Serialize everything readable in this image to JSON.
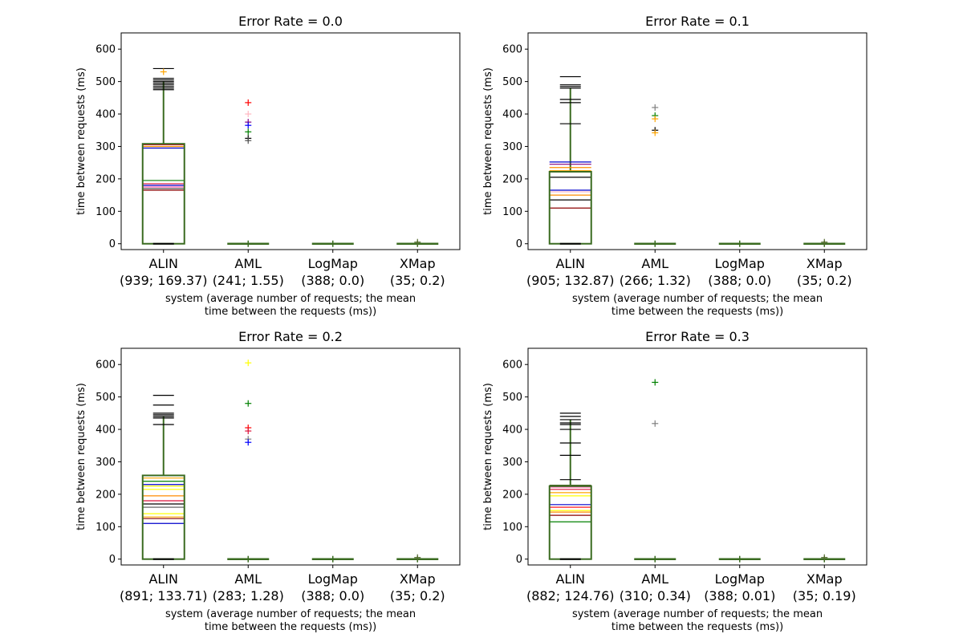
{
  "figure": {
    "xlabel": "system (average number of requests; the mean\ntime between the requests (ms))",
    "ylabel": "time between requests (ms)",
    "yticks": [
      0,
      100,
      200,
      300,
      400,
      500,
      600
    ],
    "ylim": [
      -18,
      650
    ]
  },
  "chart_data": [
    {
      "type": "box",
      "title": "Error Rate = 0.0",
      "categories": [
        "ALIN\n(939; 169.37)",
        "AML\n(241; 1.55)",
        "LogMap\n(388; 0.0)",
        "XMap\n(35; 0.2)"
      ],
      "alin": {
        "q1": 0,
        "q3": 308,
        "whisker_top": 500,
        "whisker_bottom": 0,
        "medians": [
          {
            "value": 165,
            "color": "#8b0000"
          },
          {
            "value": 170,
            "color": "#555555"
          },
          {
            "value": 175,
            "color": "#ff69b4"
          },
          {
            "value": 180,
            "color": "#0000cc"
          },
          {
            "value": 185,
            "color": "#dc143c"
          },
          {
            "value": 195,
            "color": "#228b22"
          }
        ],
        "box_tops": [
          {
            "value": 295,
            "color": "#0000cc"
          },
          {
            "value": 300,
            "color": "#ff8c00"
          },
          {
            "value": 305,
            "color": "#dc143c"
          }
        ],
        "caps": [
          475,
          480,
          485,
          490,
          495,
          500,
          505,
          510,
          540
        ],
        "outliers": [
          {
            "value": 530,
            "color": "#ffa500"
          }
        ]
      },
      "others": [
        {
          "index": 1,
          "outliers": [
            {
              "value": 435,
              "color": "#ff0000"
            },
            {
              "value": 400,
              "color": "#ffb6c1"
            },
            {
              "value": 375,
              "color": "#800080"
            },
            {
              "value": 365,
              "color": "#0000ff"
            },
            {
              "value": 345,
              "color": "#008000"
            },
            {
              "value": 325,
              "color": "#000000"
            },
            {
              "value": 318,
              "color": "#555555"
            }
          ]
        },
        {
          "index": 2,
          "outliers": []
        },
        {
          "index": 3,
          "outliers": [
            {
              "value": 5,
              "color": "#556b2f"
            }
          ]
        }
      ]
    },
    {
      "type": "box",
      "title": "Error Rate = 0.1",
      "categories": [
        "ALIN\n(905; 132.87)",
        "AML\n(266; 1.32)",
        "LogMap\n(388; 0.0)",
        "XMap\n(35; 0.2)"
      ],
      "alin": {
        "q1": 0,
        "q3": 222,
        "whisker_top": 480,
        "whisker_bottom": 0,
        "medians": [
          {
            "value": 110,
            "color": "#8b0000"
          },
          {
            "value": 135,
            "color": "#000000"
          },
          {
            "value": 150,
            "color": "#ff8c00"
          },
          {
            "value": 160,
            "color": "#ffb6c1"
          },
          {
            "value": 165,
            "color": "#0000cc"
          }
        ],
        "box_tops": [
          {
            "value": 205,
            "color": "#000000"
          },
          {
            "value": 225,
            "color": "#ffa500"
          },
          {
            "value": 235,
            "color": "#ff8c00"
          },
          {
            "value": 245,
            "color": "#800080"
          },
          {
            "value": 252,
            "color": "#0000cc"
          }
        ],
        "caps": [
          370,
          435,
          445,
          480,
          485,
          490,
          515
        ],
        "outliers": []
      },
      "others": [
        {
          "index": 1,
          "outliers": [
            {
              "value": 420,
              "color": "#808080"
            },
            {
              "value": 395,
              "color": "#008000"
            },
            {
              "value": 385,
              "color": "#ffa500"
            },
            {
              "value": 350,
              "color": "#000000"
            },
            {
              "value": 342,
              "color": "#ffa500"
            }
          ]
        },
        {
          "index": 2,
          "outliers": []
        },
        {
          "index": 3,
          "outliers": [
            {
              "value": 5,
              "color": "#556b2f"
            }
          ]
        }
      ]
    },
    {
      "type": "box",
      "title": "Error Rate = 0.2",
      "categories": [
        "ALIN\n(891; 133.71)",
        "AML\n(283; 1.28)",
        "LogMap\n(388; 0.0)",
        "XMap\n(35; 0.2)"
      ],
      "alin": {
        "q1": 0,
        "q3": 258,
        "whisker_top": 440,
        "whisker_bottom": 0,
        "medians": [
          {
            "value": 110,
            "color": "#0000cc"
          },
          {
            "value": 125,
            "color": "#8b0000"
          },
          {
            "value": 130,
            "color": "#ffa500"
          },
          {
            "value": 140,
            "color": "#ffff00"
          },
          {
            "value": 160,
            "color": "#555555"
          },
          {
            "value": 170,
            "color": "#000000"
          },
          {
            "value": 180,
            "color": "#dc143c"
          },
          {
            "value": 195,
            "color": "#ff8c00"
          },
          {
            "value": 215,
            "color": "#ffff00"
          }
        ],
        "box_tops": [
          {
            "value": 225,
            "color": "#ffff00"
          },
          {
            "value": 230,
            "color": "#0000cc"
          },
          {
            "value": 240,
            "color": "#008000"
          },
          {
            "value": 250,
            "color": "#ffa500"
          },
          {
            "value": 258,
            "color": "#ff0000"
          }
        ],
        "caps": [
          415,
          435,
          440,
          445,
          450,
          475,
          505
        ],
        "outliers": []
      },
      "others": [
        {
          "index": 1,
          "outliers": [
            {
              "value": 605,
              "color": "#ffff00"
            },
            {
              "value": 480,
              "color": "#008000"
            },
            {
              "value": 405,
              "color": "#ff0000"
            },
            {
              "value": 395,
              "color": "#dc143c"
            },
            {
              "value": 370,
              "color": "#808080"
            },
            {
              "value": 360,
              "color": "#0000ff"
            }
          ]
        },
        {
          "index": 2,
          "outliers": []
        },
        {
          "index": 3,
          "outliers": [
            {
              "value": 5,
              "color": "#556b2f"
            }
          ]
        }
      ]
    },
    {
      "type": "box",
      "title": "Error Rate = 0.3",
      "categories": [
        "ALIN\n(882; 124.76)",
        "AML\n(310; 0.34)",
        "LogMap\n(388; 0.01)",
        "XMap\n(35; 0.19)"
      ],
      "alin": {
        "q1": 0,
        "q3": 225,
        "whisker_top": 430,
        "whisker_bottom": 0,
        "medians": [
          {
            "value": 115,
            "color": "#008000"
          },
          {
            "value": 135,
            "color": "#8b0000"
          },
          {
            "value": 145,
            "color": "#ff8c00"
          },
          {
            "value": 150,
            "color": "#ffff00"
          },
          {
            "value": 160,
            "color": "#ff0000"
          },
          {
            "value": 168,
            "color": "#0000cc"
          },
          {
            "value": 195,
            "color": "#ffff00"
          },
          {
            "value": 205,
            "color": "#ffa500"
          },
          {
            "value": 215,
            "color": "#dc143c"
          },
          {
            "value": 222,
            "color": "#ff69b4"
          }
        ],
        "box_tops": [
          {
            "value": 228,
            "color": "#556b2f"
          }
        ],
        "caps": [
          245,
          320,
          358,
          400,
          415,
          420,
          430,
          440,
          450
        ],
        "outliers": []
      },
      "others": [
        {
          "index": 1,
          "outliers": [
            {
              "value": 545,
              "color": "#008000"
            },
            {
              "value": 418,
              "color": "#808080"
            }
          ]
        },
        {
          "index": 2,
          "outliers": []
        },
        {
          "index": 3,
          "outliers": [
            {
              "value": 5,
              "color": "#556b2f"
            }
          ]
        }
      ]
    }
  ]
}
